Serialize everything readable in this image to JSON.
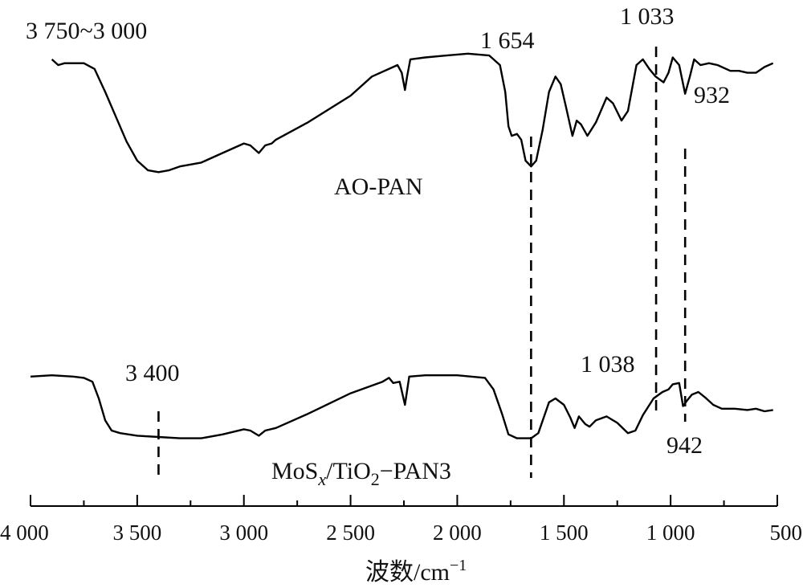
{
  "chart_data": {
    "type": "line",
    "xlabel": "波数/cm⁻¹",
    "xlim": [
      4000,
      500
    ],
    "x_ticks": [
      4000,
      3500,
      3000,
      2500,
      2000,
      1500,
      1000,
      500
    ],
    "x_tick_labels": [
      "4 000",
      "3 500",
      "3 000",
      "2 500",
      "2 000",
      "1 500",
      "1 000",
      "500"
    ],
    "y_axis_shown": false,
    "grid": false,
    "series": [
      {
        "name": "AO-PAN",
        "points": [
          [
            3900,
            0.95
          ],
          [
            3870,
            0.92
          ],
          [
            3840,
            0.93
          ],
          [
            3800,
            0.93
          ],
          [
            3750,
            0.93
          ],
          [
            3700,
            0.9
          ],
          [
            3650,
            0.78
          ],
          [
            3600,
            0.65
          ],
          [
            3550,
            0.52
          ],
          [
            3500,
            0.42
          ],
          [
            3450,
            0.37
          ],
          [
            3400,
            0.36
          ],
          [
            3350,
            0.37
          ],
          [
            3300,
            0.39
          ],
          [
            3250,
            0.4
          ],
          [
            3200,
            0.41
          ],
          [
            3100,
            0.46
          ],
          [
            3000,
            0.51
          ],
          [
            2970,
            0.5
          ],
          [
            2930,
            0.46
          ],
          [
            2900,
            0.5
          ],
          [
            2870,
            0.51
          ],
          [
            2850,
            0.53
          ],
          [
            2700,
            0.62
          ],
          [
            2500,
            0.76
          ],
          [
            2400,
            0.86
          ],
          [
            2300,
            0.91
          ],
          [
            2280,
            0.92
          ],
          [
            2260,
            0.88
          ],
          [
            2245,
            0.79
          ],
          [
            2235,
            0.86
          ],
          [
            2220,
            0.95
          ],
          [
            2150,
            0.96
          ],
          [
            2050,
            0.97
          ],
          [
            1950,
            0.98
          ],
          [
            1850,
            0.97
          ],
          [
            1800,
            0.92
          ],
          [
            1775,
            0.78
          ],
          [
            1760,
            0.6
          ],
          [
            1745,
            0.55
          ],
          [
            1720,
            0.56
          ],
          [
            1700,
            0.53
          ],
          [
            1680,
            0.42
          ],
          [
            1654,
            0.39
          ],
          [
            1630,
            0.42
          ],
          [
            1600,
            0.58
          ],
          [
            1570,
            0.78
          ],
          [
            1540,
            0.86
          ],
          [
            1515,
            0.82
          ],
          [
            1490,
            0.7
          ],
          [
            1460,
            0.55
          ],
          [
            1440,
            0.63
          ],
          [
            1420,
            0.61
          ],
          [
            1390,
            0.55
          ],
          [
            1350,
            0.62
          ],
          [
            1300,
            0.75
          ],
          [
            1270,
            0.72
          ],
          [
            1230,
            0.63
          ],
          [
            1200,
            0.68
          ],
          [
            1160,
            0.92
          ],
          [
            1130,
            0.95
          ],
          [
            1100,
            0.9
          ],
          [
            1070,
            0.86
          ],
          [
            1033,
            0.83
          ],
          [
            1010,
            0.88
          ],
          [
            990,
            0.96
          ],
          [
            960,
            0.92
          ],
          [
            932,
            0.77
          ],
          [
            910,
            0.86
          ],
          [
            890,
            0.95
          ],
          [
            860,
            0.92
          ],
          [
            820,
            0.93
          ],
          [
            780,
            0.92
          ],
          [
            720,
            0.89
          ],
          [
            680,
            0.89
          ],
          [
            640,
            0.88
          ],
          [
            600,
            0.88
          ],
          [
            560,
            0.91
          ],
          [
            520,
            0.93
          ]
        ]
      },
      {
        "name": "MoSx/TiO2-PAN3",
        "points": [
          [
            4000,
            0.62
          ],
          [
            3900,
            0.63
          ],
          [
            3800,
            0.62
          ],
          [
            3750,
            0.61
          ],
          [
            3710,
            0.58
          ],
          [
            3680,
            0.45
          ],
          [
            3650,
            0.28
          ],
          [
            3620,
            0.2
          ],
          [
            3580,
            0.18
          ],
          [
            3500,
            0.16
          ],
          [
            3400,
            0.15
          ],
          [
            3300,
            0.14
          ],
          [
            3200,
            0.14
          ],
          [
            3100,
            0.17
          ],
          [
            3000,
            0.21
          ],
          [
            2970,
            0.2
          ],
          [
            2930,
            0.16
          ],
          [
            2900,
            0.2
          ],
          [
            2850,
            0.22
          ],
          [
            2700,
            0.33
          ],
          [
            2500,
            0.49
          ],
          [
            2350,
            0.58
          ],
          [
            2320,
            0.61
          ],
          [
            2300,
            0.57
          ],
          [
            2270,
            0.58
          ],
          [
            2245,
            0.4
          ],
          [
            2225,
            0.62
          ],
          [
            2150,
            0.63
          ],
          [
            2000,
            0.63
          ],
          [
            1870,
            0.61
          ],
          [
            1830,
            0.52
          ],
          [
            1790,
            0.33
          ],
          [
            1760,
            0.17
          ],
          [
            1720,
            0.14
          ],
          [
            1654,
            0.14
          ],
          [
            1620,
            0.18
          ],
          [
            1570,
            0.42
          ],
          [
            1540,
            0.45
          ],
          [
            1500,
            0.4
          ],
          [
            1470,
            0.3
          ],
          [
            1450,
            0.22
          ],
          [
            1430,
            0.31
          ],
          [
            1400,
            0.25
          ],
          [
            1380,
            0.23
          ],
          [
            1350,
            0.28
          ],
          [
            1300,
            0.31
          ],
          [
            1250,
            0.26
          ],
          [
            1200,
            0.18
          ],
          [
            1165,
            0.2
          ],
          [
            1130,
            0.32
          ],
          [
            1080,
            0.45
          ],
          [
            1038,
            0.5
          ],
          [
            1010,
            0.52
          ],
          [
            990,
            0.56
          ],
          [
            960,
            0.57
          ],
          [
            942,
            0.39
          ],
          [
            920,
            0.44
          ],
          [
            900,
            0.48
          ],
          [
            870,
            0.5
          ],
          [
            840,
            0.46
          ],
          [
            800,
            0.4
          ],
          [
            760,
            0.37
          ],
          [
            700,
            0.37
          ],
          [
            640,
            0.36
          ],
          [
            600,
            0.37
          ],
          [
            560,
            0.35
          ],
          [
            520,
            0.36
          ]
        ]
      }
    ],
    "markers": [
      {
        "x": 3400,
        "series": "MoSx/TiO2-PAN3"
      },
      {
        "x": 1654,
        "series": "both"
      },
      {
        "x": 1033,
        "series": "AO-PAN"
      },
      {
        "x": 1038,
        "series": "MoSx/TiO2-PAN3"
      },
      {
        "x": 932,
        "series": "AO-PAN"
      },
      {
        "x": 942,
        "series": "MoSx/TiO2-PAN3"
      }
    ],
    "annotations": {
      "range_top": "3 750~3 000",
      "peak_1654": "1 654",
      "peak_1033": "1 033",
      "peak_932": "932",
      "peak_3400": "3 400",
      "peak_1038": "1 038",
      "peak_942": "942",
      "label_aopan": "AO-PAN",
      "label_mos_1": "MoS",
      "label_mos_x": "x",
      "label_mos_2": "/TiO",
      "label_mos_sub2": "2",
      "label_mos_3": "−PAN3"
    },
    "xlabel_main": "波数/cm",
    "xlabel_sup": "−1"
  }
}
